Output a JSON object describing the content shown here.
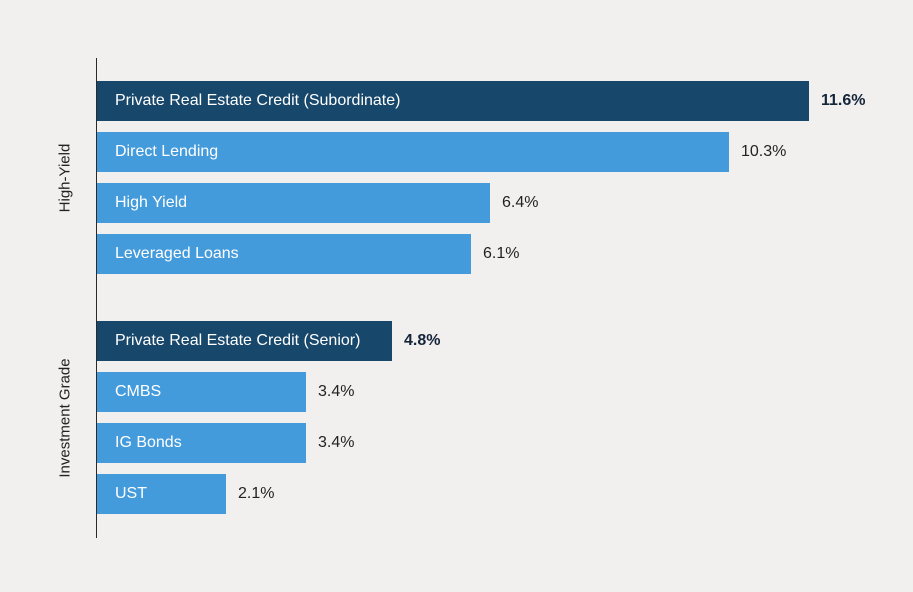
{
  "chart_data": {
    "type": "bar",
    "orientation": "horizontal",
    "title": "",
    "xlabel": "",
    "ylabel": "",
    "xlim": [
      0,
      11.6
    ],
    "grid": false,
    "groups": [
      {
        "name": "High-Yield",
        "items": [
          {
            "label": "Private Real Estate Credit (Subordinate)",
            "value": 11.6,
            "value_label": "11.6%",
            "highlight": true
          },
          {
            "label": "Direct Lending",
            "value": 10.3,
            "value_label": "10.3%",
            "highlight": false
          },
          {
            "label": "High Yield",
            "value": 6.4,
            "value_label": "6.4%",
            "highlight": false
          },
          {
            "label": "Leveraged Loans",
            "value": 6.1,
            "value_label": "6.1%",
            "highlight": false
          }
        ]
      },
      {
        "name": "Investment Grade",
        "items": [
          {
            "label": "Private Real Estate Credit (Senior)",
            "value": 4.8,
            "value_label": "4.8%",
            "highlight": true
          },
          {
            "label": "CMBS",
            "value": 3.4,
            "value_label": "3.4%",
            "highlight": false
          },
          {
            "label": "IG Bonds",
            "value": 3.4,
            "value_label": "3.4%",
            "highlight": false
          },
          {
            "label": "UST",
            "value": 2.1,
            "value_label": "2.1%",
            "highlight": false
          }
        ]
      }
    ],
    "colors": {
      "highlight": "#17476b",
      "default": "#449bdc",
      "highlight_text": "#ffffff",
      "default_text": "#ffffff"
    }
  }
}
